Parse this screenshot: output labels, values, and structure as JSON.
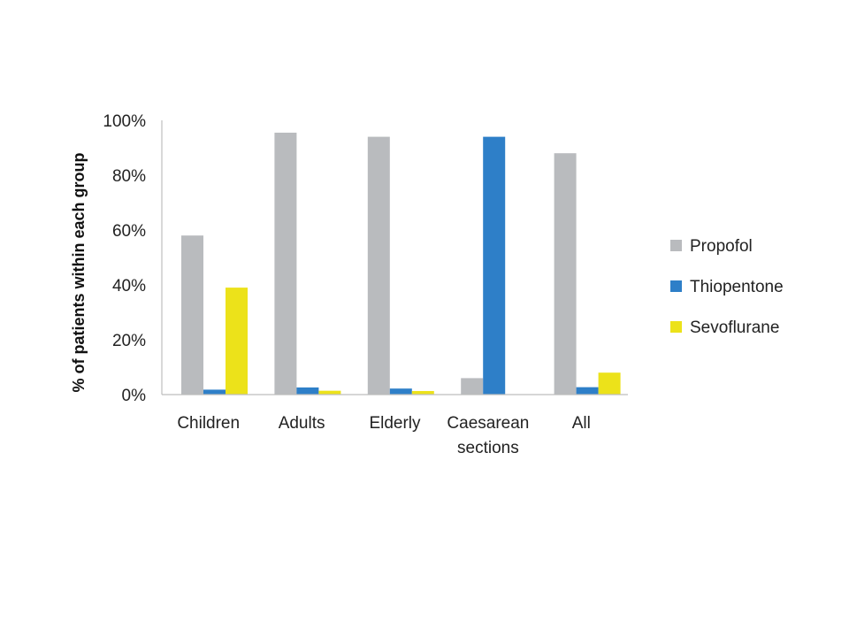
{
  "chart_data": {
    "type": "bar",
    "title": "",
    "xlabel": "",
    "ylabel": "% of patients within each group",
    "categories": [
      [
        "Children"
      ],
      [
        "Adults"
      ],
      [
        "Elderly"
      ],
      [
        "Caesarean",
        "sections"
      ],
      [
        "All"
      ]
    ],
    "series": [
      {
        "name": "Propofol",
        "color": "#b9bbbe",
        "values": [
          58,
          95.5,
          94,
          6,
          88
        ]
      },
      {
        "name": "Thiopentone",
        "color": "#2e7fc8",
        "values": [
          1.8,
          2.6,
          2.2,
          94,
          2.7
        ]
      },
      {
        "name": "Sevoflurane",
        "color": "#ece21a",
        "values": [
          39,
          1.4,
          1.3,
          0,
          8
        ]
      }
    ],
    "ylim": [
      0,
      100
    ],
    "yticks": [
      "0%",
      "20%",
      "40%",
      "60%",
      "80%",
      "100%"
    ],
    "grid": false,
    "legend": "right"
  }
}
